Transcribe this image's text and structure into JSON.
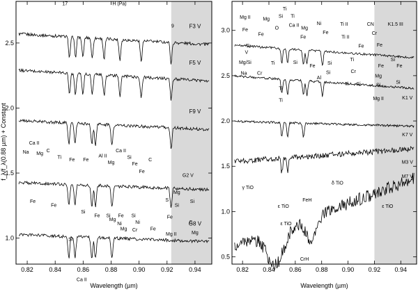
{
  "figure": {
    "ylabel": "f_λ/f_λ(0.88 µm) + Constant",
    "shade_color": "#d9d9d9",
    "line_color": "#000000"
  },
  "chart_data": [
    {
      "type": "line",
      "panel": "left",
      "xlabel": "Wavelength (µm)",
      "xlim": [
        0.812,
        0.952
      ],
      "ylim": [
        0.8,
        2.82
      ],
      "xticks": [
        0.82,
        0.84,
        0.86,
        0.88,
        0.9,
        0.92,
        0.94
      ],
      "xtick_labels": [
        "0.82",
        "0.84",
        "0.86",
        "0.88",
        "0.90",
        "0.92",
        "0.94"
      ],
      "yticks": [
        1.0,
        1.5,
        2.0,
        2.5
      ],
      "ytick_labels": [
        "1.0",
        "1.5",
        "2.0",
        "2.5"
      ],
      "shaded_xrange": [
        0.923,
        0.952
      ],
      "series": [
        {
          "name": "F3 V",
          "offset": 2.53,
          "tilt": -0.06,
          "lines": [
            0.8502,
            0.8545,
            0.8598,
            0.8665,
            0.875,
            0.8863,
            0.9015,
            0.9229
          ]
        },
        {
          "name": "F5 V",
          "offset": 2.25,
          "tilt": -0.06,
          "lines": [
            0.8502,
            0.8545,
            0.8598,
            0.8665,
            0.875,
            0.8863,
            0.9015,
            0.9229
          ]
        },
        {
          "name": "F9 V",
          "offset": 1.87,
          "tilt": -0.05,
          "lines": [
            0.8498,
            0.8542,
            0.8662,
            0.8688,
            0.8806,
            0.9229
          ]
        },
        {
          "name": "G2 V",
          "offset": 1.4,
          "tilt": -0.04,
          "lines": [
            0.8498,
            0.8542,
            0.8662,
            0.8688,
            0.8806,
            0.9229
          ]
        },
        {
          "name": "G8 V",
          "offset": 1.0,
          "tilt": -0.04,
          "lines": [
            0.8498,
            0.8542,
            0.8662,
            0.8688,
            0.8806
          ]
        }
      ],
      "annotations": [
        {
          "text": "17",
          "x": 0.847,
          "y": 2.79
        },
        {
          "text": "H (Pa)",
          "x": 0.886,
          "y": 2.79
        },
        {
          "text": "9",
          "x": 0.924,
          "y": 2.62
        },
        {
          "text": "Ca II",
          "x": 0.825,
          "y": 1.72
        },
        {
          "text": "Na",
          "x": 0.819,
          "y": 1.65
        },
        {
          "text": "Mg",
          "x": 0.829,
          "y": 1.64
        },
        {
          "text": "C",
          "x": 0.835,
          "y": 1.66
        },
        {
          "text": "Ti",
          "x": 0.843,
          "y": 1.61
        },
        {
          "text": "Fe",
          "x": 0.852,
          "y": 1.59
        },
        {
          "text": "Fe",
          "x": 0.862,
          "y": 1.59
        },
        {
          "text": "Al II",
          "x": 0.874,
          "y": 1.62
        },
        {
          "text": "Mg",
          "x": 0.88,
          "y": 1.57
        },
        {
          "text": "Ca II",
          "x": 0.887,
          "y": 1.66
        },
        {
          "text": "Si",
          "x": 0.893,
          "y": 1.61
        },
        {
          "text": "Fe",
          "x": 0.897,
          "y": 1.56
        },
        {
          "text": "C",
          "x": 0.908,
          "y": 1.59
        },
        {
          "text": "Fe",
          "x": 0.902,
          "y": 1.5
        },
        {
          "text": "Fe",
          "x": 0.824,
          "y": 1.27
        },
        {
          "text": "Fe",
          "x": 0.839,
          "y": 1.24
        },
        {
          "text": "Si",
          "x": 0.86,
          "y": 1.19
        },
        {
          "text": "Fe",
          "x": 0.87,
          "y": 1.16
        },
        {
          "text": "Si",
          "x": 0.878,
          "y": 1.16
        },
        {
          "text": "Mg",
          "x": 0.881,
          "y": 1.13
        },
        {
          "text": "Fe",
          "x": 0.887,
          "y": 1.16
        },
        {
          "text": "Ni",
          "x": 0.886,
          "y": 1.1
        },
        {
          "text": "Si",
          "x": 0.896,
          "y": 1.16
        },
        {
          "text": "Ni",
          "x": 0.899,
          "y": 1.11
        },
        {
          "text": "Mg",
          "x": 0.889,
          "y": 1.06
        },
        {
          "text": "Cr",
          "x": 0.897,
          "y": 1.05
        },
        {
          "text": "Fe",
          "x": 0.91,
          "y": 1.06
        },
        {
          "text": "Si",
          "x": 0.851,
          "y": 0.98
        },
        {
          "text": "G2 V",
          "x": 0.935,
          "y": 1.47
        },
        {
          "text": "S",
          "x": 0.92,
          "y": 1.28
        },
        {
          "text": "Mg",
          "x": 0.927,
          "y": 1.34
        },
        {
          "text": "Si",
          "x": 0.927,
          "y": 1.24
        },
        {
          "text": "Fe",
          "x": 0.922,
          "y": 1.15
        },
        {
          "text": "Mg II",
          "x": 0.923,
          "y": 1.02
        },
        {
          "text": "Si",
          "x": 0.938,
          "y": 1.27
        },
        {
          "text": "C",
          "x": 0.937,
          "y": 1.11
        },
        {
          "text": "Mg",
          "x": 0.94,
          "y": 1.03
        },
        {
          "text": "Ca II",
          "x": 0.859,
          "y": 0.67
        }
      ]
    },
    {
      "type": "line",
      "panel": "right",
      "xlabel": "Wavelength (µm)",
      "xlim": [
        0.812,
        0.952
      ],
      "ylim": [
        0.42,
        3.32
      ],
      "xticks": [
        0.82,
        0.84,
        0.86,
        0.88,
        0.9,
        0.92,
        0.94
      ],
      "xtick_labels": [
        "0.82",
        "0.84",
        "0.86",
        "0.88",
        "0.90",
        "0.92",
        "0.94"
      ],
      "yticks": [
        0.5,
        1.0,
        1.5,
        2.0,
        2.5,
        3.0
      ],
      "ytick_labels": [
        "0.5",
        "1.0",
        "1.5",
        "2.0",
        "2.5",
        "3.0"
      ],
      "shaded_xrange": [
        0.92,
        0.952
      ],
      "series": [
        {
          "name": "K1.5 III",
          "offset": 2.77,
          "tilt": -0.1,
          "lines": [
            0.8498,
            0.8542,
            0.8662,
            0.8688,
            0.8806
          ]
        },
        {
          "name": "K1 V",
          "offset": 2.43,
          "tilt": -0.1,
          "lines": [
            0.8498,
            0.8542,
            0.8662,
            0.8688,
            0.8806
          ]
        },
        {
          "name": "K7 V",
          "offset": 1.97,
          "tilt": -0.04,
          "lines": [
            0.8498,
            0.8542,
            0.8662
          ]
        },
        {
          "name": "M3 V",
          "offset": 1.62,
          "tilt": 0.1,
          "lines": [
            0.8498,
            0.8542
          ]
        },
        {
          "name": "M7 V",
          "offset": 0.98,
          "tilt": 0.55,
          "lines": []
        }
      ],
      "annotations": [
        {
          "text": "K1.5 III",
          "x": 0.936,
          "y": 3.05
        },
        {
          "text": "Ti",
          "x": 0.852,
          "y": 3.22
        },
        {
          "text": "Mg II",
          "x": 0.822,
          "y": 3.13
        },
        {
          "text": "Si",
          "x": 0.849,
          "y": 3.14
        },
        {
          "text": "Ti",
          "x": 0.858,
          "y": 3.14
        },
        {
          "text": "Mg",
          "x": 0.838,
          "y": 3.11
        },
        {
          "text": "Fe",
          "x": 0.822,
          "y": 2.99
        },
        {
          "text": "O",
          "x": 0.846,
          "y": 3.01
        },
        {
          "text": "Ca II",
          "x": 0.859,
          "y": 3.04
        },
        {
          "text": "Ni",
          "x": 0.878,
          "y": 3.06
        },
        {
          "text": "Ti II",
          "x": 0.897,
          "y": 3.05
        },
        {
          "text": "Mg",
          "x": 0.867,
          "y": 3.01
        },
        {
          "text": "Fe",
          "x": 0.834,
          "y": 2.94
        },
        {
          "text": "Fe",
          "x": 0.866,
          "y": 2.91
        },
        {
          "text": "Fe",
          "x": 0.883,
          "y": 2.96
        },
        {
          "text": "Ti II",
          "x": 0.898,
          "y": 2.91
        },
        {
          "text": "CN",
          "x": 0.917,
          "y": 3.05
        },
        {
          "text": "Cr",
          "x": 0.92,
          "y": 2.95
        },
        {
          "text": "Fe",
          "x": 0.91,
          "y": 2.81
        },
        {
          "text": "Fe",
          "x": 0.924,
          "y": 2.82
        },
        {
          "text": "Ti",
          "x": 0.824,
          "y": 2.81
        },
        {
          "text": "V",
          "x": 0.823,
          "y": 2.74
        },
        {
          "text": "Mg/Si",
          "x": 0.822,
          "y": 2.63
        },
        {
          "text": "Na",
          "x": 0.821,
          "y": 2.51
        },
        {
          "text": "Cr",
          "x": 0.833,
          "y": 2.51
        },
        {
          "text": "Ti",
          "x": 0.843,
          "y": 2.62
        },
        {
          "text": "Si",
          "x": 0.86,
          "y": 2.63
        },
        {
          "text": "Fe",
          "x": 0.873,
          "y": 2.59
        },
        {
          "text": "Si",
          "x": 0.886,
          "y": 2.62
        },
        {
          "text": "Si",
          "x": 0.885,
          "y": 2.52
        },
        {
          "text": "Ti",
          "x": 0.903,
          "y": 2.66
        },
        {
          "text": "Cr",
          "x": 0.904,
          "y": 2.53
        },
        {
          "text": "Al",
          "x": 0.878,
          "y": 2.46
        },
        {
          "text": "Ti",
          "x": 0.899,
          "y": 2.39
        },
        {
          "text": "Si",
          "x": 0.908,
          "y": 2.39
        },
        {
          "text": "Ti",
          "x": 0.849,
          "y": 2.34
        },
        {
          "text": "Ti",
          "x": 0.849,
          "y": 2.21
        },
        {
          "text": "Fe",
          "x": 0.925,
          "y": 2.59
        },
        {
          "text": "Si",
          "x": 0.934,
          "y": 2.66
        },
        {
          "text": "Fe",
          "x": 0.939,
          "y": 2.59
        },
        {
          "text": "Mg",
          "x": 0.923,
          "y": 2.48
        },
        {
          "text": "Si",
          "x": 0.923,
          "y": 2.38
        },
        {
          "text": "Mg II",
          "x": 0.923,
          "y": 2.23
        },
        {
          "text": "Si",
          "x": 0.938,
          "y": 2.41
        },
        {
          "text": "K1 V",
          "x": 0.945,
          "y": 2.24
        },
        {
          "text": "K7 V",
          "x": 0.945,
          "y": 1.83
        },
        {
          "text": "M3 V",
          "x": 0.945,
          "y": 1.53
        },
        {
          "text": "M7 V",
          "x": 0.945,
          "y": 1.37
        },
        {
          "text": "γ TiO",
          "x": 0.824,
          "y": 1.25
        },
        {
          "text": "ε TiO",
          "x": 0.851,
          "y": 1.04
        },
        {
          "text": "FeH",
          "x": 0.869,
          "y": 1.11
        },
        {
          "text": "δ TiO",
          "x": 0.892,
          "y": 1.3
        },
        {
          "text": "ε TiO",
          "x": 0.853,
          "y": 0.85
        },
        {
          "text": "CrH",
          "x": 0.867,
          "y": 0.46
        },
        {
          "text": "ε TiO",
          "x": 0.93,
          "y": 1.04
        }
      ]
    }
  ]
}
